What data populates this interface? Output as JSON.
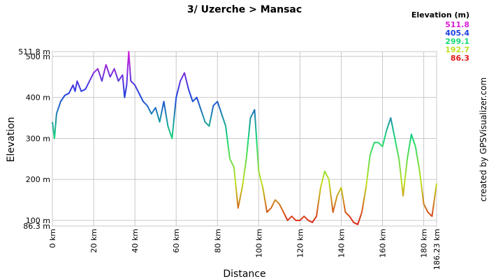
{
  "chart_data": {
    "type": "line",
    "title": "3/ Uzerche > Mansac",
    "x_label": "Distance",
    "y_label": "Elevation",
    "credit": "created by GPSVisualizer.com",
    "grid": true,
    "xlim": [
      0,
      186.23
    ],
    "ylim": [
      86.3,
      511.8
    ],
    "xticks": [
      {
        "value": 0,
        "label": "0 km"
      },
      {
        "value": 20,
        "label": "20 km"
      },
      {
        "value": 40,
        "label": "40 km"
      },
      {
        "value": 60,
        "label": "60 km"
      },
      {
        "value": 80,
        "label": "80 km"
      },
      {
        "value": 100,
        "label": "100 km"
      },
      {
        "value": 120,
        "label": "120 km"
      },
      {
        "value": 140,
        "label": "140 km"
      },
      {
        "value": 160,
        "label": "160 km"
      },
      {
        "value": 180,
        "label": "180 km"
      },
      {
        "value": 186.23,
        "label": "186.23 km"
      }
    ],
    "yticks": [
      {
        "value": 86.3,
        "label": "86.3 m"
      },
      {
        "value": 100,
        "label": "100 m"
      },
      {
        "value": 200,
        "label": "200 m"
      },
      {
        "value": 300,
        "label": "300 m"
      },
      {
        "value": 400,
        "label": "400 m"
      },
      {
        "value": 500,
        "label": "500 m"
      },
      {
        "value": 511.8,
        "label": "511.8 m"
      }
    ],
    "color_scale": {
      "title": "Elevation (m)",
      "stops": [
        {
          "value": 511.8,
          "color": "#d81ed8"
        },
        {
          "value": 405.4,
          "color": "#1f3fe0"
        },
        {
          "value": 299.1,
          "color": "#18d878"
        },
        {
          "value": 192.7,
          "color": "#c0e020"
        },
        {
          "value": 86.3,
          "color": "#e01818"
        }
      ]
    },
    "x": [
      0,
      1,
      2,
      4,
      6,
      8,
      10,
      11,
      12,
      14,
      16,
      18,
      20,
      22,
      24,
      26,
      28,
      30,
      32,
      34,
      35,
      36,
      37,
      38,
      40,
      42,
      44,
      46,
      48,
      50,
      52,
      54,
      56,
      58,
      60,
      62,
      64,
      66,
      68,
      70,
      72,
      74,
      76,
      78,
      80,
      82,
      84,
      86,
      88,
      90,
      92,
      94,
      96,
      98,
      100,
      102,
      104,
      106,
      108,
      110,
      112,
      114,
      116,
      118,
      120,
      122,
      124,
      126,
      128,
      130,
      132,
      134,
      136,
      138,
      140,
      142,
      144,
      146,
      148,
      150,
      152,
      154,
      156,
      158,
      160,
      162,
      164,
      166,
      168,
      170,
      172,
      174,
      176,
      178,
      180,
      182,
      184,
      186.23
    ],
    "values": [
      340,
      300,
      360,
      390,
      405,
      410,
      430,
      415,
      440,
      415,
      420,
      440,
      460,
      470,
      440,
      480,
      450,
      470,
      440,
      455,
      400,
      430,
      511.8,
      440,
      430,
      410,
      390,
      380,
      360,
      375,
      340,
      390,
      330,
      300,
      400,
      440,
      460,
      420,
      390,
      400,
      370,
      340,
      330,
      380,
      390,
      360,
      330,
      250,
      230,
      130,
      180,
      250,
      350,
      370,
      220,
      180,
      120,
      130,
      150,
      140,
      120,
      100,
      110,
      100,
      100,
      110,
      100,
      95,
      110,
      180,
      220,
      200,
      120,
      160,
      180,
      120,
      110,
      95,
      90,
      120,
      180,
      260,
      290,
      290,
      280,
      320,
      350,
      300,
      250,
      160,
      250,
      310,
      280,
      220,
      140,
      120,
      110,
      190
    ]
  }
}
